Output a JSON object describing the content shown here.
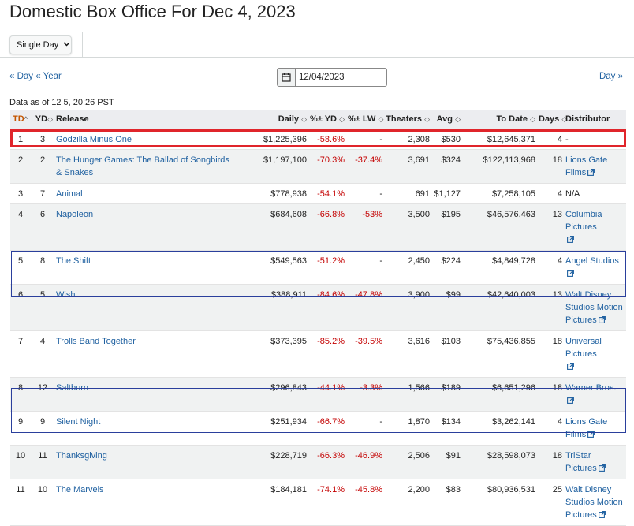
{
  "page": {
    "title": "Domestic Box Office For Dec 4, 2023",
    "view_select": {
      "value": "Single Day"
    },
    "nav": {
      "prev_day": "« Day",
      "prev_year": "« Year",
      "next_day": "Day »"
    },
    "date_value": "12/04/2023",
    "data_as_of": "Data as of 12 5, 20:26 PST"
  },
  "table": {
    "headers": {
      "td": "TD",
      "yd": "YD",
      "release": "Release",
      "daily": "Daily",
      "pct_yd": "%± YD",
      "pct_lw": "%± LW",
      "theaters": "Theaters",
      "avg": "Avg",
      "to_date": "To Date",
      "days": "Days",
      "distributor": "Distributor"
    },
    "rows": [
      {
        "td": "1",
        "yd": "3",
        "release": [
          "Godzilla Minus One"
        ],
        "daily": "$1,225,396",
        "pct_yd": "-58.6%",
        "pct_lw": "-",
        "theaters": "2,308",
        "avg": "$530",
        "to_date": "$12,645,371",
        "days": "4",
        "distributor": [
          "-"
        ],
        "dist_link": false
      },
      {
        "td": "2",
        "yd": "2",
        "release": [
          "The Hunger Games: The Ballad of Songbirds",
          "& Snakes"
        ],
        "daily": "$1,197,100",
        "pct_yd": "-70.3%",
        "pct_lw": "-37.4%",
        "theaters": "3,691",
        "avg": "$324",
        "to_date": "$122,113,968",
        "days": "18",
        "distributor": [
          "Lions Gate Films"
        ],
        "dist_link": true
      },
      {
        "td": "3",
        "yd": "7",
        "release": [
          "Animal"
        ],
        "daily": "$778,938",
        "pct_yd": "-54.1%",
        "pct_lw": "-",
        "theaters": "691",
        "avg": "$1,127",
        "to_date": "$7,258,105",
        "days": "4",
        "distributor": [
          "N/A"
        ],
        "dist_link": false
      },
      {
        "td": "4",
        "yd": "6",
        "release": [
          "Napoleon"
        ],
        "daily": "$684,608",
        "pct_yd": "-66.8%",
        "pct_lw": "-53%",
        "theaters": "3,500",
        "avg": "$195",
        "to_date": "$46,576,463",
        "days": "13",
        "distributor": [
          "Columbia Pictures",
          ""
        ],
        "dist_link": true
      },
      {
        "td": "5",
        "yd": "8",
        "release": [
          "The Shift"
        ],
        "daily": "$549,563",
        "pct_yd": "-51.2%",
        "pct_lw": "-",
        "theaters": "2,450",
        "avg": "$224",
        "to_date": "$4,849,728",
        "days": "4",
        "distributor": [
          "Angel Studios"
        ],
        "dist_link": true
      },
      {
        "td": "6",
        "yd": "5",
        "release": [
          "Wish"
        ],
        "daily": "$388,911",
        "pct_yd": "-84.6%",
        "pct_lw": "-47.8%",
        "theaters": "3,900",
        "avg": "$99",
        "to_date": "$42,640,003",
        "days": "13",
        "distributor": [
          "Walt Disney",
          "Studios Motion",
          "Pictures"
        ],
        "dist_link": true
      },
      {
        "td": "7",
        "yd": "4",
        "release": [
          "Trolls Band Together"
        ],
        "daily": "$373,395",
        "pct_yd": "-85.2%",
        "pct_lw": "-39.5%",
        "theaters": "3,616",
        "avg": "$103",
        "to_date": "$75,436,855",
        "days": "18",
        "distributor": [
          "Universal Pictures",
          ""
        ],
        "dist_link": true
      },
      {
        "td": "8",
        "yd": "12",
        "release": [
          "Saltburn"
        ],
        "daily": "$296,843",
        "pct_yd": "-44.1%",
        "pct_lw": "-3.3%",
        "theaters": "1,566",
        "avg": "$189",
        "to_date": "$6,651,296",
        "days": "18",
        "distributor": [
          "Warner Bros."
        ],
        "dist_link": true
      },
      {
        "td": "9",
        "yd": "9",
        "release": [
          "Silent Night"
        ],
        "daily": "$251,934",
        "pct_yd": "-66.7%",
        "pct_lw": "-",
        "theaters": "1,870",
        "avg": "$134",
        "to_date": "$3,262,141",
        "days": "4",
        "distributor": [
          "Lions Gate Films"
        ],
        "dist_link": true
      },
      {
        "td": "10",
        "yd": "11",
        "release": [
          "Thanksgiving"
        ],
        "daily": "$228,719",
        "pct_yd": "-66.3%",
        "pct_lw": "-46.9%",
        "theaters": "2,506",
        "avg": "$91",
        "to_date": "$28,598,073",
        "days": "18",
        "distributor": [
          "TriStar Pictures"
        ],
        "dist_link": true
      },
      {
        "td": "11",
        "yd": "10",
        "release": [
          "The Marvels"
        ],
        "daily": "$184,181",
        "pct_yd": "-74.1%",
        "pct_lw": "-45.8%",
        "theaters": "2,200",
        "avg": "$83",
        "to_date": "$80,936,531",
        "days": "25",
        "distributor": [
          "Walt Disney",
          "Studios Motion",
          "Pictures"
        ],
        "dist_link": true
      }
    ]
  },
  "colors": {
    "link": "#2162a1",
    "negative": "#c40000",
    "highlight_red": "#e0252b",
    "highlight_blue": "#2a3f9c",
    "td_header": "#c45500"
  }
}
